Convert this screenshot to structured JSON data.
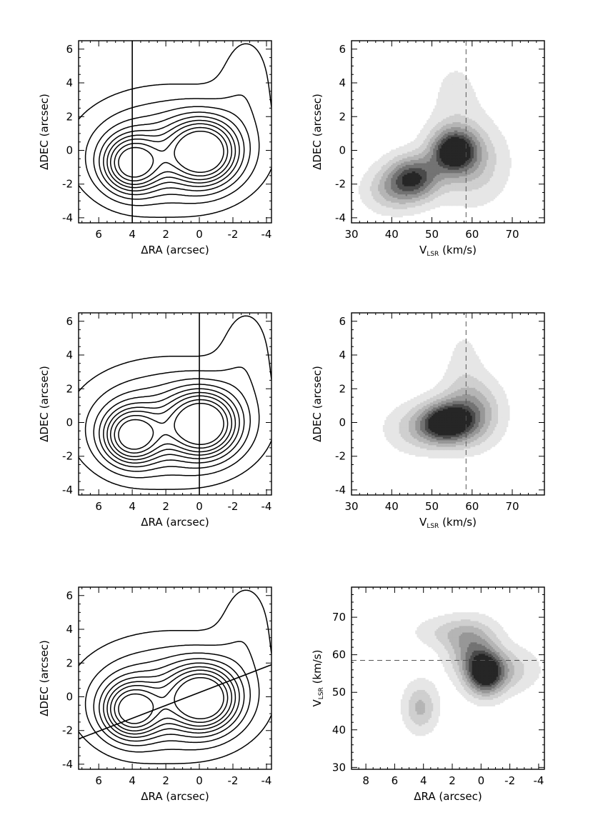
{
  "figure": {
    "panels": [
      {
        "id": "contour-1",
        "kind": "contour",
        "xlabel": "ΔRA (arcsec)",
        "ylabel": "ΔDEC (arcsec)",
        "xlim": [
          7.2,
          -4.3
        ],
        "ylim": [
          -4.3,
          6.5
        ],
        "xticks": [
          6,
          4,
          2,
          0,
          -2,
          -4
        ],
        "yticks": [
          -4,
          -2,
          0,
          2,
          4,
          6
        ],
        "slice": {
          "style": "solid",
          "from": [
            4,
            -4.3
          ],
          "to": [
            4,
            6.5
          ]
        }
      },
      {
        "id": "pv-1",
        "kind": "pv",
        "xlabel": "V",
        "xlabel_sub": "LSR",
        "xlabel_unit": " (km/s)",
        "ylabel": "ΔDEC (arcsec)",
        "xlim": [
          30,
          78
        ],
        "ylim": [
          -4.3,
          6.5
        ],
        "xticks": [
          30,
          40,
          50,
          60,
          70
        ],
        "yticks": [
          -4,
          -2,
          0,
          2,
          4,
          6
        ],
        "ref_line": {
          "orientation": "vertical",
          "value": 58.5,
          "style": "dashed"
        }
      },
      {
        "id": "contour-2",
        "kind": "contour",
        "xlabel": "ΔRA (arcsec)",
        "ylabel": "ΔDEC (arcsec)",
        "xlim": [
          7.2,
          -4.3
        ],
        "ylim": [
          -4.3,
          6.5
        ],
        "xticks": [
          6,
          4,
          2,
          0,
          -2,
          -4
        ],
        "yticks": [
          -4,
          -2,
          0,
          2,
          4,
          6
        ],
        "slice": {
          "style": "solid",
          "from": [
            0,
            -4.3
          ],
          "to": [
            0,
            6.5
          ]
        }
      },
      {
        "id": "pv-2",
        "kind": "pv",
        "xlabel": "V",
        "xlabel_sub": "LSR",
        "xlabel_unit": " (km/s)",
        "ylabel": "ΔDEC (arcsec)",
        "xlim": [
          30,
          78
        ],
        "ylim": [
          -4.3,
          6.5
        ],
        "xticks": [
          30,
          40,
          50,
          60,
          70
        ],
        "yticks": [
          -4,
          -2,
          0,
          2,
          4,
          6
        ],
        "ref_line": {
          "orientation": "vertical",
          "value": 58.5,
          "style": "dashed"
        }
      },
      {
        "id": "contour-3",
        "kind": "contour",
        "xlabel": "ΔRA (arcsec)",
        "ylabel": "ΔDEC (arcsec)",
        "xlim": [
          7.2,
          -4.3
        ],
        "ylim": [
          -4.3,
          6.5
        ],
        "xticks": [
          6,
          4,
          2,
          0,
          -2,
          -4
        ],
        "yticks": [
          -4,
          -2,
          0,
          2,
          4,
          6
        ],
        "slice": {
          "style": "solid",
          "from": [
            7.2,
            -2.5
          ],
          "to": [
            -4.3,
            1.9
          ]
        }
      },
      {
        "id": "pv-3",
        "kind": "pv",
        "xlabel": "ΔRA (arcsec)",
        "ylabel": "V",
        "ylabel_sub": "LSR",
        "ylabel_unit": " (km/s)",
        "xlim": [
          9,
          -4.4
        ],
        "ylim": [
          29.5,
          78
        ],
        "xticks": [
          8,
          6,
          4,
          2,
          0,
          -2,
          -4
        ],
        "yticks": [
          30,
          40,
          50,
          60,
          70
        ],
        "ref_line": {
          "orientation": "horizontal",
          "value": 58.5,
          "style": "dashed"
        }
      }
    ]
  },
  "chart_data": [
    {
      "type": "contour",
      "xlabel": "ΔRA (arcsec)",
      "ylabel": "ΔDEC (arcsec)",
      "xlim": [
        7.2,
        -4.3
      ],
      "ylim": [
        -4.3,
        6.5
      ],
      "peaks": [
        {
          "x": 4.0,
          "y": -0.8,
          "sx": 1.15,
          "sy": 1.1,
          "amp": 0.85
        },
        {
          "x": -0.2,
          "y": -0.1,
          "sx": 1.35,
          "sy": 1.25,
          "amp": 1.0
        },
        {
          "x": 1.8,
          "y": 0.0,
          "sx": 3.6,
          "sy": 2.3,
          "amp": 0.42
        },
        {
          "x": -2.8,
          "y": 4.4,
          "sx": 1.2,
          "sy": 2.2,
          "amp": 0.14
        }
      ],
      "levels": [
        0.1,
        0.2,
        0.3,
        0.4,
        0.5,
        0.6,
        0.7,
        0.82,
        0.94
      ],
      "slice_line": {
        "from": [
          4,
          -4.3
        ],
        "to": [
          4,
          6.5
        ]
      }
    },
    {
      "type": "heatmap",
      "xlabel": "V LSR (km/s)",
      "ylabel": "ΔDEC (arcsec)",
      "xlim": [
        30,
        78
      ],
      "ylim": [
        -4.3,
        6.5
      ],
      "peaks": [
        {
          "x": 55.5,
          "y": 0.0,
          "sx": 4.0,
          "sy": 0.9,
          "amp": 1.0
        },
        {
          "x": 45.5,
          "y": -1.6,
          "sx": 4.5,
          "sy": 0.9,
          "amp": 0.85
        },
        {
          "x": 40.0,
          "y": -2.4,
          "sx": 5.0,
          "sy": 0.9,
          "amp": 0.35
        },
        {
          "x": 60.0,
          "y": -0.8,
          "sx": 6.0,
          "sy": 1.6,
          "amp": 0.35
        },
        {
          "x": 56.0,
          "y": 3.0,
          "sx": 5.0,
          "sy": 2.0,
          "amp": 0.14
        }
      ],
      "levels": [
        0.1,
        0.24,
        0.38,
        0.52,
        0.66,
        0.8,
        0.92
      ],
      "ref_line": {
        "orientation": "vertical",
        "value": 58.5
      }
    },
    {
      "type": "contour",
      "xlabel": "ΔRA (arcsec)",
      "ylabel": "ΔDEC (arcsec)",
      "xlim": [
        7.2,
        -4.3
      ],
      "ylim": [
        -4.3,
        6.5
      ],
      "peaks": [
        {
          "x": 4.0,
          "y": -0.8,
          "sx": 1.15,
          "sy": 1.1,
          "amp": 0.85
        },
        {
          "x": -0.2,
          "y": -0.1,
          "sx": 1.35,
          "sy": 1.25,
          "amp": 1.0
        },
        {
          "x": 1.8,
          "y": 0.0,
          "sx": 3.6,
          "sy": 2.3,
          "amp": 0.42
        },
        {
          "x": -2.8,
          "y": 4.4,
          "sx": 1.2,
          "sy": 2.2,
          "amp": 0.14
        }
      ],
      "levels": [
        0.1,
        0.2,
        0.3,
        0.4,
        0.5,
        0.6,
        0.7,
        0.82,
        0.94
      ],
      "slice_line": {
        "from": [
          0,
          -4.3
        ],
        "to": [
          0,
          6.5
        ]
      }
    },
    {
      "type": "heatmap",
      "xlabel": "V LSR (km/s)",
      "ylabel": "ΔDEC (arcsec)",
      "xlim": [
        30,
        78
      ],
      "ylim": [
        -4.3,
        6.5
      ],
      "peaks": [
        {
          "x": 53.5,
          "y": 0.0,
          "sx": 4.5,
          "sy": 0.8,
          "amp": 1.0
        },
        {
          "x": 60.0,
          "y": 0.6,
          "sx": 5.0,
          "sy": 1.3,
          "amp": 0.55
        },
        {
          "x": 47.0,
          "y": -0.4,
          "sx": 6.0,
          "sy": 1.0,
          "amp": 0.3
        },
        {
          "x": 58.0,
          "y": 3.5,
          "sx": 3.5,
          "sy": 1.8,
          "amp": 0.13
        }
      ],
      "levels": [
        0.1,
        0.24,
        0.38,
        0.52,
        0.66,
        0.8,
        0.92
      ],
      "ref_line": {
        "orientation": "vertical",
        "value": 58.5
      }
    },
    {
      "type": "contour",
      "xlabel": "ΔRA (arcsec)",
      "ylabel": "ΔDEC (arcsec)",
      "xlim": [
        7.2,
        -4.3
      ],
      "ylim": [
        -4.3,
        6.5
      ],
      "peaks": [
        {
          "x": 4.0,
          "y": -0.8,
          "sx": 1.15,
          "sy": 1.1,
          "amp": 0.85
        },
        {
          "x": -0.2,
          "y": -0.1,
          "sx": 1.35,
          "sy": 1.25,
          "amp": 1.0
        },
        {
          "x": 1.8,
          "y": 0.0,
          "sx": 3.6,
          "sy": 2.3,
          "amp": 0.42
        },
        {
          "x": -2.8,
          "y": 4.4,
          "sx": 1.2,
          "sy": 2.2,
          "amp": 0.14
        }
      ],
      "levels": [
        0.1,
        0.2,
        0.3,
        0.4,
        0.5,
        0.6,
        0.7,
        0.82,
        0.94
      ],
      "slice_line": {
        "from": [
          7.2,
          -2.5
        ],
        "to": [
          -4.3,
          1.9
        ]
      }
    },
    {
      "type": "heatmap",
      "xlabel": "ΔRA (arcsec)",
      "ylabel": "V LSR (km/s)",
      "xlim": [
        9,
        -4.4
      ],
      "ylim": [
        29.5,
        78
      ],
      "peaks": [
        {
          "x": -0.3,
          "y": 55.0,
          "sx": 0.9,
          "sy": 4.0,
          "amp": 1.0
        },
        {
          "x": 0.6,
          "y": 61.0,
          "sx": 1.2,
          "sy": 5.0,
          "amp": 0.5
        },
        {
          "x": 4.2,
          "y": 46.0,
          "sx": 0.8,
          "sy": 4.5,
          "amp": 0.42
        },
        {
          "x": 2.0,
          "y": 66.0,
          "sx": 1.8,
          "sy": 3.0,
          "amp": 0.26
        },
        {
          "x": -2.0,
          "y": 56.0,
          "sx": 1.4,
          "sy": 4.0,
          "amp": 0.3
        }
      ],
      "levels": [
        0.1,
        0.24,
        0.38,
        0.52,
        0.66,
        0.8,
        0.92
      ],
      "ref_line": {
        "orientation": "horizontal",
        "value": 58.5
      }
    }
  ]
}
